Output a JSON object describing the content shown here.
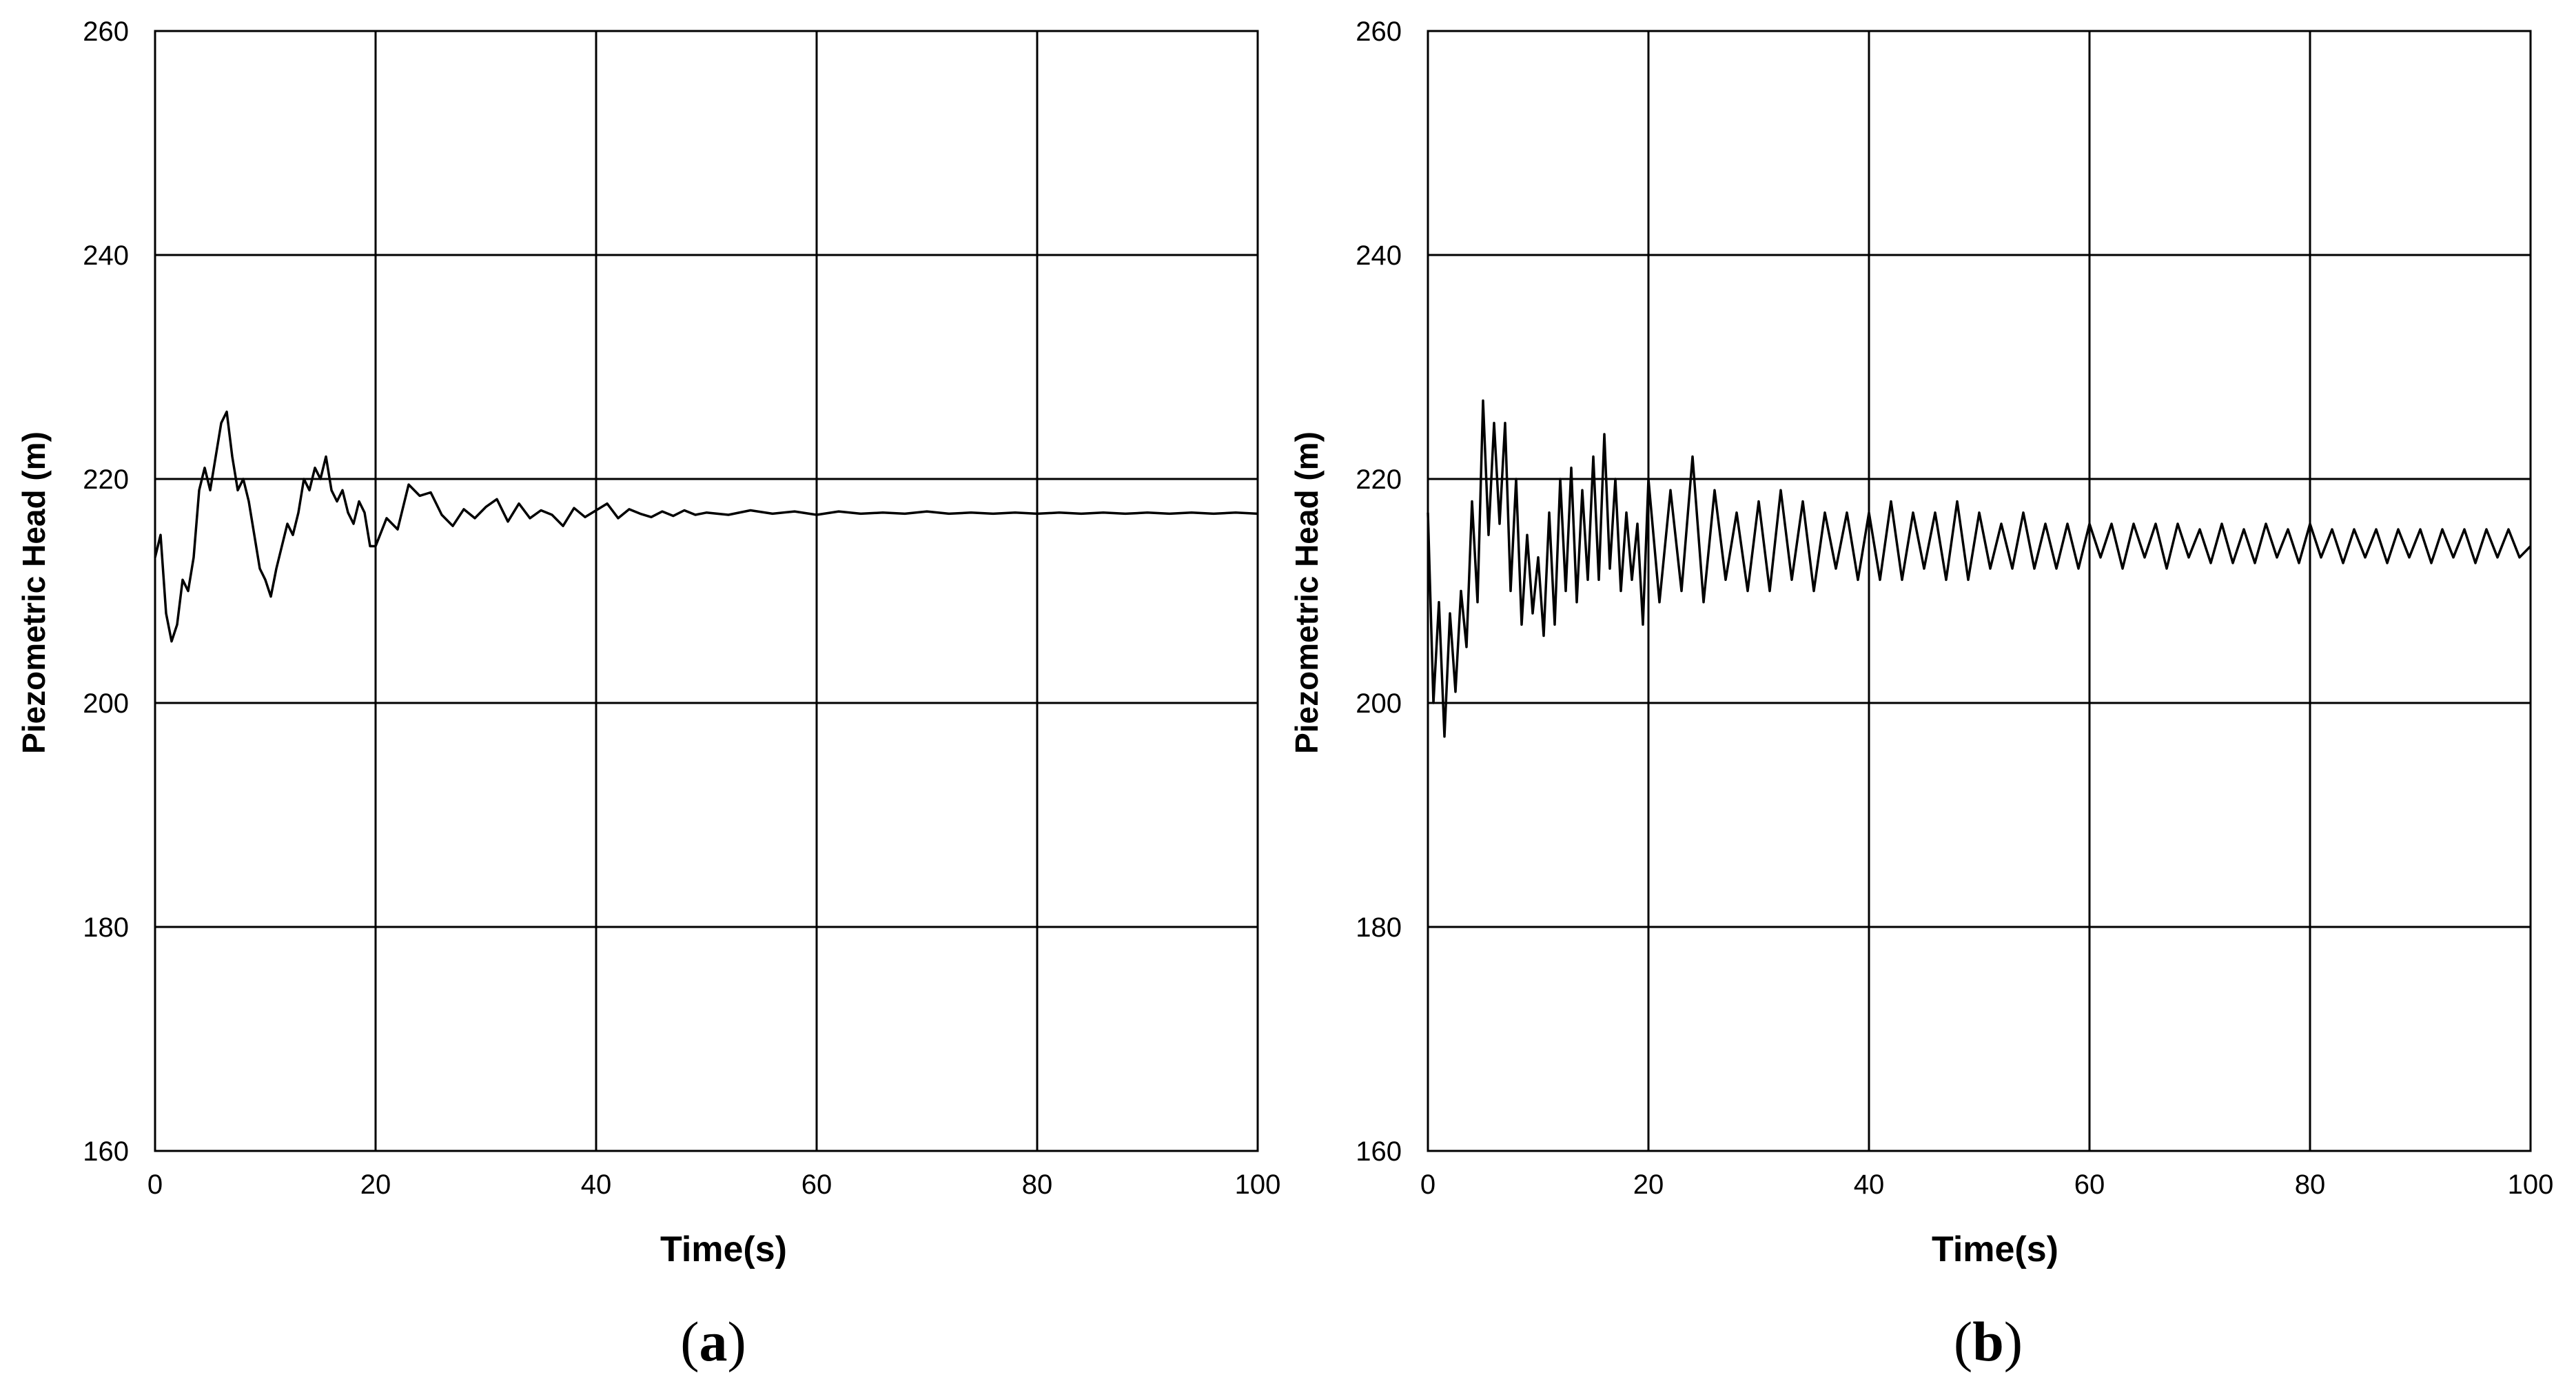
{
  "colors": {
    "line": "#000000",
    "grid": "#000000",
    "frame": "#000000",
    "background": "#ffffff"
  },
  "panels": [
    {
      "caption_letter": "a",
      "chart_data": {
        "type": "line",
        "title": "",
        "xlabel": "Time(s)",
        "ylabel": "Piezometric Head (m)",
        "xlim": [
          0,
          100
        ],
        "ylim": [
          160,
          260
        ],
        "xticks": [
          0,
          20,
          40,
          60,
          80,
          100
        ],
        "yticks": [
          160,
          180,
          200,
          220,
          240,
          260
        ],
        "grid": true,
        "legend": "none",
        "series": [
          {
            "x": [
              0,
              0.5,
              1,
              1.5,
              2,
              2.5,
              3,
              3.5,
              4,
              4.5,
              5,
              5.5,
              6,
              6.5,
              7,
              7.5,
              8,
              8.5,
              9,
              9.5,
              10,
              10.5,
              11,
              11.5,
              12,
              12.5,
              13,
              13.5,
              14,
              14.5,
              15,
              15.5,
              16,
              16.5,
              17,
              17.5,
              18,
              18.5,
              19,
              19.5,
              20,
              21,
              22,
              23,
              24,
              25,
              26,
              27,
              28,
              29,
              30,
              31,
              32,
              33,
              34,
              35,
              36,
              37,
              38,
              39,
              40,
              41,
              42,
              43,
              44,
              45,
              46,
              47,
              48,
              49,
              50,
              52,
              54,
              56,
              58,
              60,
              62,
              64,
              66,
              68,
              70,
              72,
              74,
              76,
              78,
              80,
              82,
              84,
              86,
              88,
              90,
              92,
              94,
              96,
              98,
              100
            ],
            "y": [
              213,
              215,
              208,
              205.5,
              207,
              211,
              210,
              213,
              219,
              221,
              219,
              222,
              225,
              226,
              222,
              219,
              220,
              218,
              215,
              212,
              211,
              209.5,
              212,
              214,
              216,
              215,
              217,
              220,
              219,
              221,
              220,
              222,
              219,
              218,
              219,
              217,
              216,
              218,
              217,
              214,
              214,
              216.5,
              215.5,
              219.5,
              218.5,
              218.8,
              216.8,
              215.8,
              217.3,
              216.5,
              217.5,
              218.2,
              216.2,
              217.8,
              216.5,
              217.2,
              216.8,
              215.8,
              217.4,
              216.6,
              217.2,
              217.8,
              216.5,
              217.3,
              216.9,
              216.6,
              217.1,
              216.7,
              217.2,
              216.8,
              217.0,
              216.8,
              217.2,
              216.9,
              217.1,
              216.8,
              217.1,
              216.9,
              217.0,
              216.9,
              217.1,
              216.9,
              217.0,
              216.9,
              217.0,
              216.9,
              217.0,
              216.9,
              217.0,
              216.9,
              217.0,
              216.9,
              217.0,
              216.9,
              217.0,
              216.9
            ]
          }
        ]
      }
    },
    {
      "caption_letter": "b",
      "chart_data": {
        "type": "line",
        "title": "",
        "xlabel": "Time(s)",
        "ylabel": "Piezometric Head (m)",
        "xlim": [
          0,
          100
        ],
        "ylim": [
          160,
          260
        ],
        "xticks": [
          0,
          20,
          40,
          60,
          80,
          100
        ],
        "yticks": [
          160,
          180,
          200,
          220,
          240,
          260
        ],
        "grid": true,
        "legend": "none",
        "series": [
          {
            "x": [
              0,
              0.5,
              1,
              1.5,
              2,
              2.5,
              3,
              3.5,
              4,
              4.5,
              5,
              5.5,
              6,
              6.5,
              7,
              7.5,
              8,
              8.5,
              9,
              9.5,
              10,
              10.5,
              11,
              11.5,
              12,
              12.5,
              13,
              13.5,
              14,
              14.5,
              15,
              15.5,
              16,
              16.5,
              17,
              17.5,
              18,
              18.5,
              19,
              19.5,
              20,
              21,
              22,
              23,
              24,
              25,
              26,
              27,
              28,
              29,
              30,
              31,
              32,
              33,
              34,
              35,
              36,
              37,
              38,
              39,
              40,
              41,
              42,
              43,
              44,
              45,
              46,
              47,
              48,
              49,
              50,
              51,
              52,
              53,
              54,
              55,
              56,
              57,
              58,
              59,
              60,
              61,
              62,
              63,
              64,
              65,
              66,
              67,
              68,
              69,
              70,
              71,
              72,
              73,
              74,
              75,
              76,
              77,
              78,
              79,
              80,
              81,
              82,
              83,
              84,
              85,
              86,
              87,
              88,
              89,
              90,
              91,
              92,
              93,
              94,
              95,
              96,
              97,
              98,
              99,
              100
            ],
            "y": [
              217,
              200,
              209,
              197,
              208,
              201,
              210,
              205,
              218,
              209,
              227,
              215,
              225,
              216,
              225,
              210,
              220,
              207,
              215,
              208,
              213,
              206,
              217,
              207,
              220,
              210,
              221,
              209,
              219,
              211,
              222,
              211,
              224,
              212,
              220,
              210,
              217,
              211,
              216,
              207,
              220,
              209,
              219,
              210,
              222,
              209,
              219,
              211,
              217,
              210,
              218,
              210,
              219,
              211,
              218,
              210,
              217,
              212,
              217,
              211,
              217,
              211,
              218,
              211,
              217,
              212,
              217,
              211,
              218,
              211,
              217,
              212,
              216,
              212,
              217,
              212,
              216,
              212,
              216,
              212,
              216,
              213,
              216,
              212,
              216,
              213,
              216,
              212,
              216,
              213,
              215.5,
              212.5,
              216,
              212.5,
              215.5,
              212.5,
              216,
              213,
              215.5,
              212.5,
              216,
              213,
              215.5,
              212.5,
              215.5,
              213,
              215.5,
              212.5,
              215.5,
              213,
              215.5,
              212.5,
              215.5,
              213,
              215.5,
              212.5,
              215.5,
              213,
              215.5,
              213,
              214
            ]
          }
        ]
      }
    }
  ]
}
